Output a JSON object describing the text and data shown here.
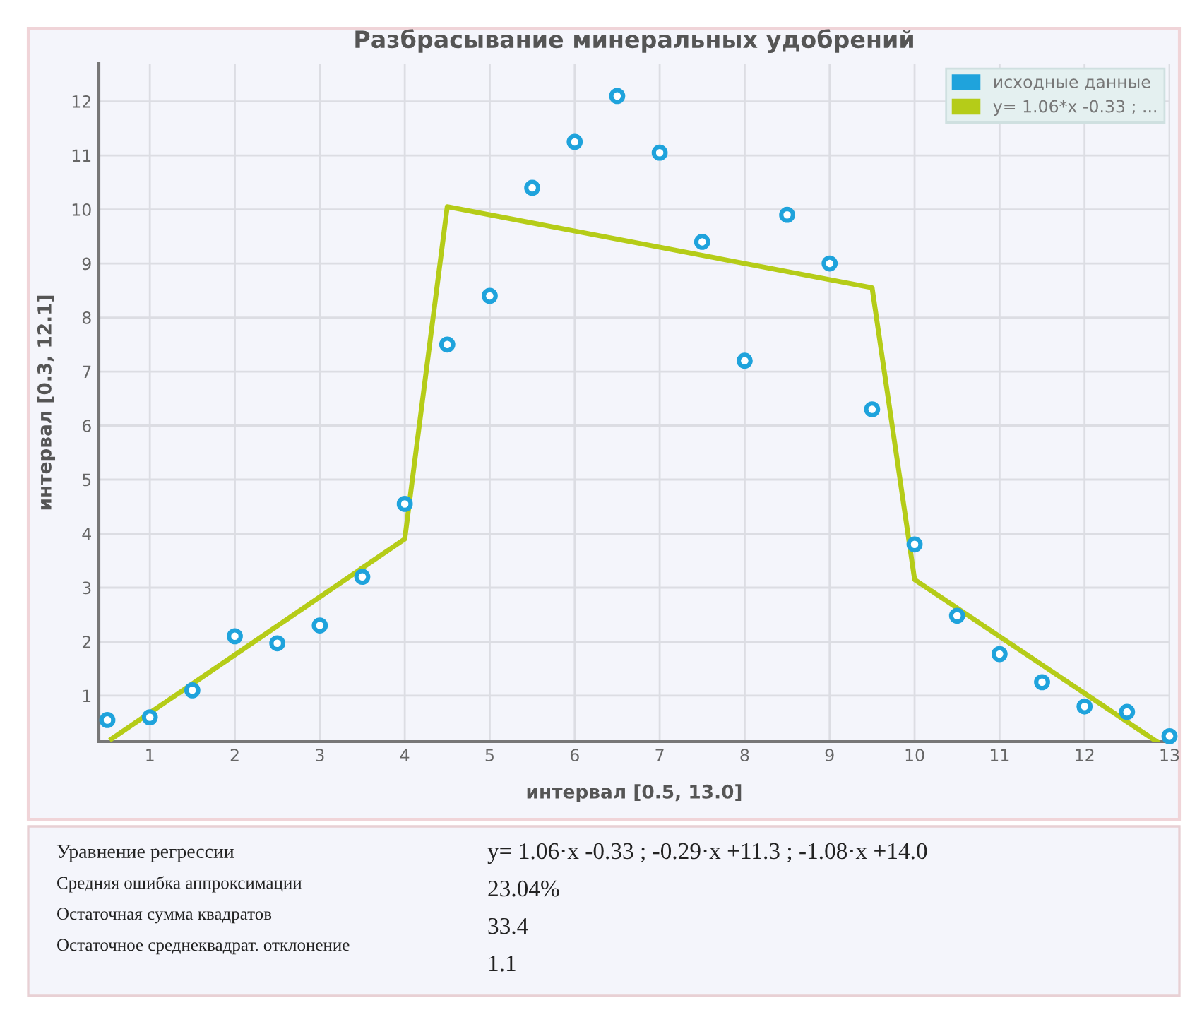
{
  "chart_data": {
    "type": "scatter",
    "title": "Разбрасывание минеральных удобрений",
    "xlabel": "интервал [0.5, 13.0]",
    "ylabel": "интервал [0.3, 12.1]",
    "xlim": [
      0.4,
      13
    ],
    "ylim": [
      0.15,
      12.7
    ],
    "xticks": [
      1,
      2,
      3,
      4,
      5,
      6,
      7,
      8,
      9,
      10,
      11,
      12,
      13
    ],
    "yticks": [
      1,
      2,
      3,
      4,
      5,
      6,
      7,
      8,
      9,
      10,
      11,
      12
    ],
    "grid": true,
    "legend": "top right",
    "marker": "circle",
    "series": [
      {
        "name": "исходные данные",
        "color": "#1fa3dc",
        "x": [
          0.5,
          1,
          1.5,
          2,
          2.5,
          3,
          3.5,
          4,
          4.5,
          5,
          5.5,
          6,
          6.5,
          7,
          7.5,
          8,
          8.5,
          9,
          9.5,
          10,
          10.5,
          11,
          11.5,
          12,
          12.5,
          13
        ],
        "values": [
          0.55,
          0.6,
          1.1,
          2.1,
          1.97,
          2.3,
          3.2,
          4.55,
          7.5,
          8.4,
          10.4,
          11.25,
          12.1,
          11.05,
          9.4,
          7.2,
          9.9,
          9.0,
          6.3,
          3.8,
          2.48,
          1.77,
          1.25,
          0.8,
          0.7,
          0.25
        ]
      },
      {
        "name": "y= 1.06*x -0.33 ; ...",
        "type": "line",
        "color": "#b5cc18",
        "marker": "none",
        "line_style": "solid",
        "x": [
          0.55,
          4,
          4.5,
          9.5,
          10,
          12.85
        ],
        "values": [
          0.2,
          3.9,
          10.05,
          8.55,
          3.15,
          0.15
        ]
      }
    ],
    "annotations": [
      "Уравнение регрессии",
      "Средняя ошибка аппроксимации",
      "Остаточная сумма квадратов",
      "Остаточное среднеквадрат. отклонение",
      "y= 1.06·x -0.33 ; -0.29·x +11.3 ; -1.08·x +14.0",
      "23.04%",
      "33.4",
      "1.1"
    ]
  }
}
